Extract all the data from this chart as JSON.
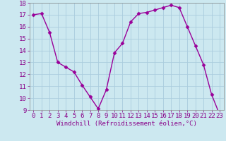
{
  "x": [
    0,
    1,
    2,
    3,
    4,
    5,
    6,
    7,
    8,
    9,
    10,
    11,
    12,
    13,
    14,
    15,
    16,
    17,
    18,
    19,
    20,
    21,
    22,
    23
  ],
  "y": [
    17.0,
    17.1,
    15.5,
    13.0,
    12.6,
    12.2,
    11.1,
    10.1,
    9.1,
    10.7,
    13.8,
    14.6,
    16.4,
    17.1,
    17.2,
    17.4,
    17.6,
    17.8,
    17.6,
    16.0,
    14.4,
    12.8,
    10.3,
    8.6
  ],
  "xlabel": "Windchill (Refroidissement éolien,°C)",
  "ylim": [
    9,
    18
  ],
  "xlim_min": -0.5,
  "xlim_max": 23.5,
  "yticks": [
    9,
    10,
    11,
    12,
    13,
    14,
    15,
    16,
    17,
    18
  ],
  "xticks": [
    0,
    1,
    2,
    3,
    4,
    5,
    6,
    7,
    8,
    9,
    10,
    11,
    12,
    13,
    14,
    15,
    16,
    17,
    18,
    19,
    20,
    21,
    22,
    23
  ],
  "line_color": "#990099",
  "marker": "D",
  "marker_size": 2.5,
  "bg_color": "#cce8f0",
  "grid_color": "#aaccdd",
  "tick_label_color": "#880088",
  "xlabel_color": "#880088",
  "xlabel_fontsize": 6.5,
  "tick_fontsize": 6.5,
  "linewidth": 1.0
}
